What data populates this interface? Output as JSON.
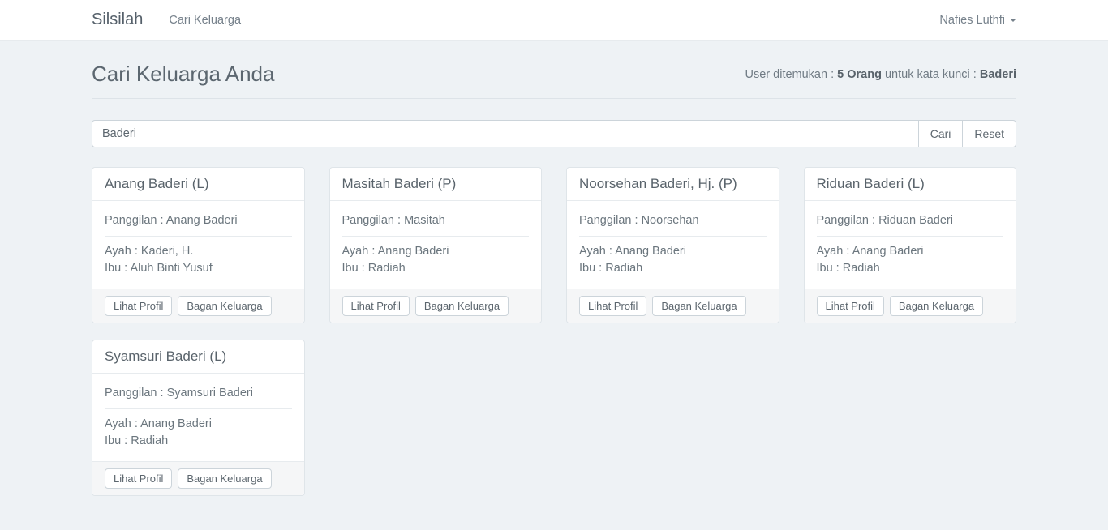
{
  "navbar": {
    "brand": "Silsilah",
    "nav_items": [
      {
        "label": "Cari Keluarga"
      }
    ],
    "user_menu": {
      "label": "Nafies Luthfi"
    }
  },
  "header": {
    "title": "Cari Keluarga Anda",
    "result_prefix": "User ditemukan : ",
    "result_count": "5 Orang",
    "result_middle": " untuk kata kunci : ",
    "result_keyword": "Baderi"
  },
  "search": {
    "value": "Baderi",
    "cari_label": "Cari",
    "reset_label": "Reset"
  },
  "card_actions": {
    "lihat_profil": "Lihat Profil",
    "bagan_keluarga": "Bagan Keluarga"
  },
  "cards": [
    {
      "title": "Anang Baderi (L)",
      "panggilan": "Panggilan : Anang Baderi",
      "ayah": "Ayah : Kaderi, H.",
      "ibu": "Ibu : Aluh Binti Yusuf"
    },
    {
      "title": "Masitah Baderi (P)",
      "panggilan": "Panggilan : Masitah",
      "ayah": "Ayah : Anang Baderi",
      "ibu": "Ibu : Radiah"
    },
    {
      "title": "Noorsehan Baderi, Hj. (P)",
      "panggilan": "Panggilan : Noorsehan",
      "ayah": "Ayah : Anang Baderi",
      "ibu": "Ibu : Radiah"
    },
    {
      "title": "Riduan Baderi (L)",
      "panggilan": "Panggilan : Riduan Baderi",
      "ayah": "Ayah : Anang Baderi",
      "ibu": "Ibu : Radiah"
    },
    {
      "title": "Syamsuri Baderi (L)",
      "panggilan": "Panggilan : Syamsuri Baderi",
      "ayah": "Ayah : Anang Baderi",
      "ibu": "Ibu : Radiah"
    }
  ],
  "colors": {
    "page_background": "#eef2f5",
    "navbar_background": "#ffffff",
    "panel_border": "#dfe5e9",
    "panel_footer_background": "#f5f6f7",
    "text_primary": "#5c6770",
    "text_secondary": "#6b767e"
  }
}
